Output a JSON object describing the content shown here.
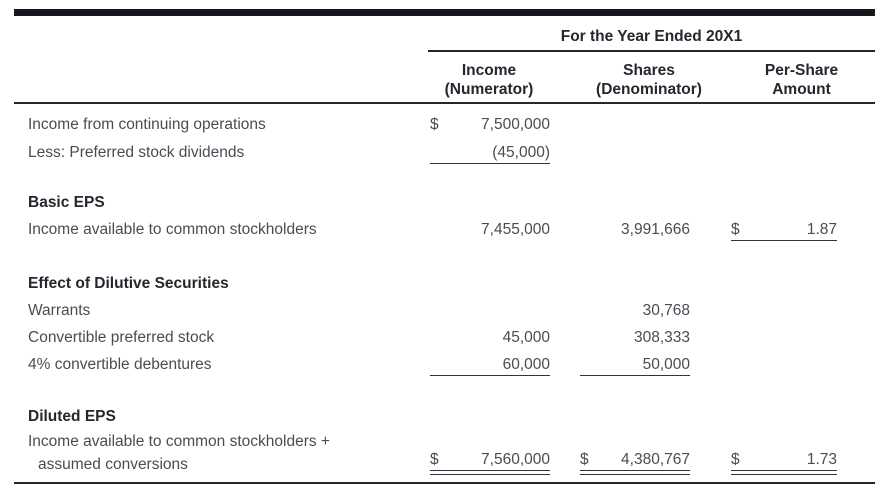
{
  "colors": {
    "background": "#ffffff",
    "body_text": "#4b4b54",
    "heading_text": "#26262e",
    "rule": "#26262e",
    "top_bar": "#17171d"
  },
  "table": {
    "spanner_header": "For the Year Ended 20X1",
    "columns": [
      {
        "line1": "Income",
        "line2": "(Numerator)"
      },
      {
        "line1": "Shares",
        "line2": "(Denominator)"
      },
      {
        "line1": "Per-Share",
        "line2": "Amount"
      }
    ],
    "rows": [
      {
        "label": "Income from continuing operations",
        "income_currency": "$",
        "income": "7,500,000"
      },
      {
        "label": "Less: Preferred stock dividends",
        "income": "(45,000)"
      },
      {
        "label": "Basic EPS"
      },
      {
        "label": "Income available to common stockholders",
        "income": "7,455,000",
        "shares": "3,991,666",
        "per_share_currency": "$",
        "per_share": "1.87"
      },
      {
        "label": "Effect of Dilutive Securities"
      },
      {
        "label": "Warrants",
        "shares": "30,768"
      },
      {
        "label": "Convertible preferred stock",
        "income": "45,000",
        "shares": "308,333"
      },
      {
        "label": "4% convertible debentures",
        "income": "60,000",
        "shares": "50,000"
      },
      {
        "label": "Diluted EPS"
      },
      {
        "label_line1": "Income available to common stockholders +",
        "label_line2": "assumed conversions",
        "income_currency": "$",
        "income": "7,560,000",
        "shares_currency": "$",
        "shares": "4,380,767",
        "per_share_currency": "$",
        "per_share": "1.73"
      }
    ]
  }
}
